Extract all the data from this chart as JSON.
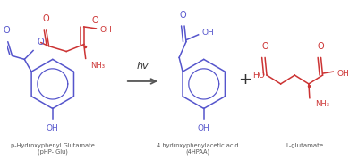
{
  "background_color": "#ffffff",
  "blue_color": "#5555cc",
  "red_color": "#cc3333",
  "arrow_color": "#555555",
  "label1_line1": "p-Hydroxyphenyl Glutamate",
  "label1_line2": "(pHP- Glu)",
  "label2_line1": "4 hydroxyphenylacetic acid",
  "label2_line2": "(4HPAA)",
  "label3": "L-glutamate",
  "hv_label": "hv",
  "figsize": [
    4.0,
    1.79
  ],
  "dpi": 100
}
